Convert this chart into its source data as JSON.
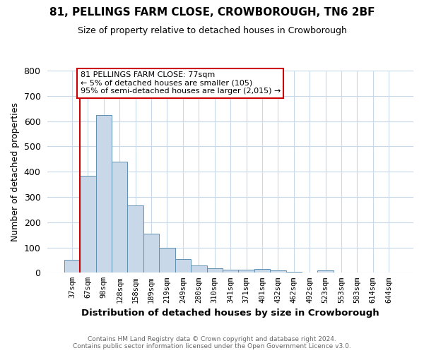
{
  "title": "81, PELLINGS FARM CLOSE, CROWBOROUGH, TN6 2BF",
  "subtitle": "Size of property relative to detached houses in Crowborough",
  "xlabel": "Distribution of detached houses by size in Crowborough",
  "ylabel": "Number of detached properties",
  "footnote": "Contains HM Land Registry data © Crown copyright and database right 2024.\nContains public sector information licensed under the Open Government Licence v3.0.",
  "bar_labels": [
    "37sqm",
    "67sqm",
    "98sqm",
    "128sqm",
    "158sqm",
    "189sqm",
    "219sqm",
    "249sqm",
    "280sqm",
    "310sqm",
    "341sqm",
    "371sqm",
    "401sqm",
    "432sqm",
    "462sqm",
    "492sqm",
    "523sqm",
    "553sqm",
    "583sqm",
    "614sqm",
    "644sqm"
  ],
  "bar_values": [
    50,
    385,
    625,
    440,
    265,
    155,
    100,
    55,
    30,
    18,
    12,
    12,
    15,
    8,
    5,
    0,
    8,
    0,
    0,
    0,
    0
  ],
  "bar_color": "#c8d8e8",
  "bar_edge_color": "#6090b0",
  "property_line_color": "#cc0000",
  "annotation_text": "81 PELLINGS FARM CLOSE: 77sqm\n← 5% of detached houses are smaller (105)\n95% of semi-detached houses are larger (2,015) →",
  "annotation_box_color": "#cc0000",
  "ylim_max": 800,
  "background_color": "#ffffff",
  "grid_color": "#c8d8e8"
}
